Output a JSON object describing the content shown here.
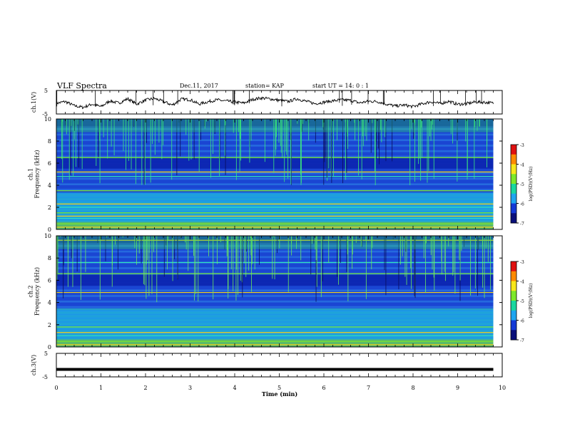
{
  "header": {
    "title": "VLF Spectra",
    "date": "Dec.11, 2017",
    "station": "station= KAP",
    "start": "start  UT =   14: 0   : 1"
  },
  "chart_data": [
    {
      "type": "line",
      "name": "waveform-ch1",
      "ylabel": "ch.1(V)",
      "ylim": [
        -5,
        5
      ],
      "yticks": [
        "5",
        "-5"
      ],
      "x": [
        0,
        0.2,
        0.4,
        0.6,
        0.8,
        1.0,
        1.2,
        1.4,
        1.6,
        1.8,
        2.0,
        2.2,
        2.4,
        2.6,
        2.8,
        3.0,
        3.2,
        3.4,
        3.6,
        3.8,
        4.0,
        4.2,
        4.4,
        4.6,
        4.8,
        5.0,
        5.2,
        5.4,
        5.6,
        5.8,
        6.0,
        6.2,
        6.4,
        6.6,
        6.8,
        7.0,
        7.2,
        7.4,
        7.6,
        7.8,
        8.0,
        8.2,
        8.4,
        8.6,
        8.8,
        9.0,
        9.2,
        9.4,
        9.6,
        9.8
      ],
      "y": [
        -0.5,
        0.3,
        -1.5,
        -2.2,
        -0.8,
        -1.9,
        0.6,
        -0.4,
        1.5,
        -0.8,
        0.9,
        1.6,
        0.3,
        -1.2,
        1.3,
        1.1,
        -0.8,
        0.2,
        1.0,
        0.5,
        0.1,
        -0.4,
        1.2,
        1.8,
        1.4,
        0.8,
        0.3,
        1.5,
        0.4,
        -0.6,
        0.0,
        0.6,
        1.0,
        0.8,
        -0.3,
        0.4,
        0.3,
        -0.8,
        -1.6,
        -1.2,
        -1.9,
        -0.7,
        0.2,
        -0.6,
        0.4,
        -0.9,
        -0.6,
        0.1,
        0.0,
        -0.4
      ]
    },
    {
      "type": "heatmap",
      "name": "spectrogram-ch1",
      "ylabel": "ch.1\nFrequency (kHz)",
      "ylim": [
        0,
        10
      ],
      "yticks": [
        "0",
        "2",
        "4",
        "6",
        "8",
        "10"
      ],
      "colorbar": {
        "label": "log(PSD)(V²/Hz)",
        "range": [
          -7,
          -3
        ],
        "ticks": [
          "-3",
          "-4",
          "-5",
          "-6",
          "-7"
        ]
      },
      "bands_khz": [
        0.2,
        0.5,
        1.0,
        1.2,
        1.5,
        2.0,
        2.3,
        3.5,
        4.8,
        5.2,
        6.5
      ]
    },
    {
      "type": "heatmap",
      "name": "spectrogram-ch2",
      "ylabel": "ch.2\nFrequency (kHz)",
      "ylim": [
        0,
        10
      ],
      "yticks": [
        "0",
        "2",
        "4",
        "6",
        "8",
        "10"
      ],
      "colorbar": {
        "label": "log(PSD)(V²/Hz)",
        "range": [
          -7,
          -3
        ],
        "ticks": [
          "-3",
          "-4",
          "-5",
          "-6",
          "-7"
        ]
      },
      "bands_khz": [
        0.2,
        0.5,
        1.0,
        1.3,
        1.8,
        3.4,
        4.9,
        6.6,
        7.6,
        9.6
      ]
    },
    {
      "type": "line",
      "name": "waveform-ch3",
      "ylabel": "ch.3(V)",
      "ylim": [
        -5,
        5
      ],
      "yticks": [
        "5",
        "-5"
      ],
      "x": [
        0,
        9.8
      ],
      "y": [
        -1.8,
        -1.8
      ]
    }
  ],
  "xaxis": {
    "label": "Time  (min)",
    "ticks": [
      "0",
      "1",
      "2",
      "3",
      "4",
      "5",
      "6",
      "7",
      "8",
      "9",
      "10"
    ],
    "range": [
      0,
      10
    ],
    "data_end": 9.8
  }
}
